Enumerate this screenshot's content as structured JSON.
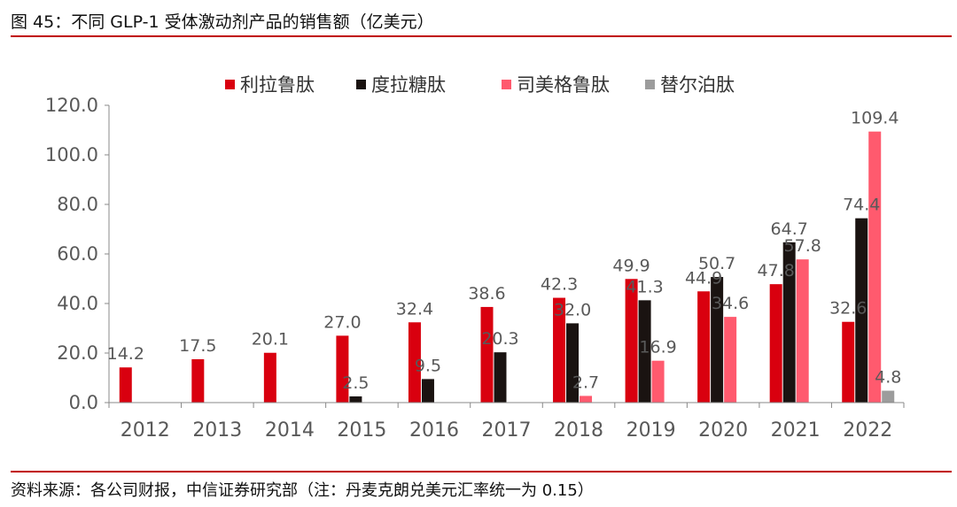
{
  "figure": {
    "title": "图 45：不同 GLP-1 受体激动剂产品的销售额（亿美元）",
    "source": "资料来源：各公司财报，中信证券研究部（注：丹麦克朗兑美元汇率统一为 0.15）"
  },
  "chart_data": {
    "type": "bar",
    "title": "",
    "xlabel": "",
    "ylabel": "",
    "categories": [
      "2012",
      "2013",
      "2014",
      "2015",
      "2016",
      "2017",
      "2018",
      "2019",
      "2020",
      "2021",
      "2022"
    ],
    "ylim": [
      0,
      120
    ],
    "yticks": [
      "0.0",
      "20.0",
      "40.0",
      "60.0",
      "80.0",
      "100.0",
      "120.0"
    ],
    "grid": false,
    "legend_position": "top",
    "series": [
      {
        "name": "利拉鲁肽",
        "color": "#d9000f",
        "values": [
          14.2,
          17.5,
          20.1,
          27.0,
          32.4,
          38.6,
          42.3,
          49.9,
          44.9,
          47.8,
          32.6
        ]
      },
      {
        "name": "度拉糖肽",
        "color": "#1a1311",
        "values": [
          null,
          null,
          null,
          2.5,
          9.5,
          20.3,
          32.0,
          41.3,
          50.7,
          64.7,
          74.4
        ]
      },
      {
        "name": "司美格鲁肽",
        "color": "#ff5a6e",
        "values": [
          null,
          null,
          null,
          null,
          null,
          null,
          2.7,
          16.9,
          34.6,
          57.8,
          109.4
        ]
      },
      {
        "name": "替尔泊肽",
        "color": "#9c9c9c",
        "values": [
          null,
          null,
          null,
          null,
          null,
          null,
          null,
          null,
          null,
          null,
          4.8
        ]
      }
    ]
  }
}
